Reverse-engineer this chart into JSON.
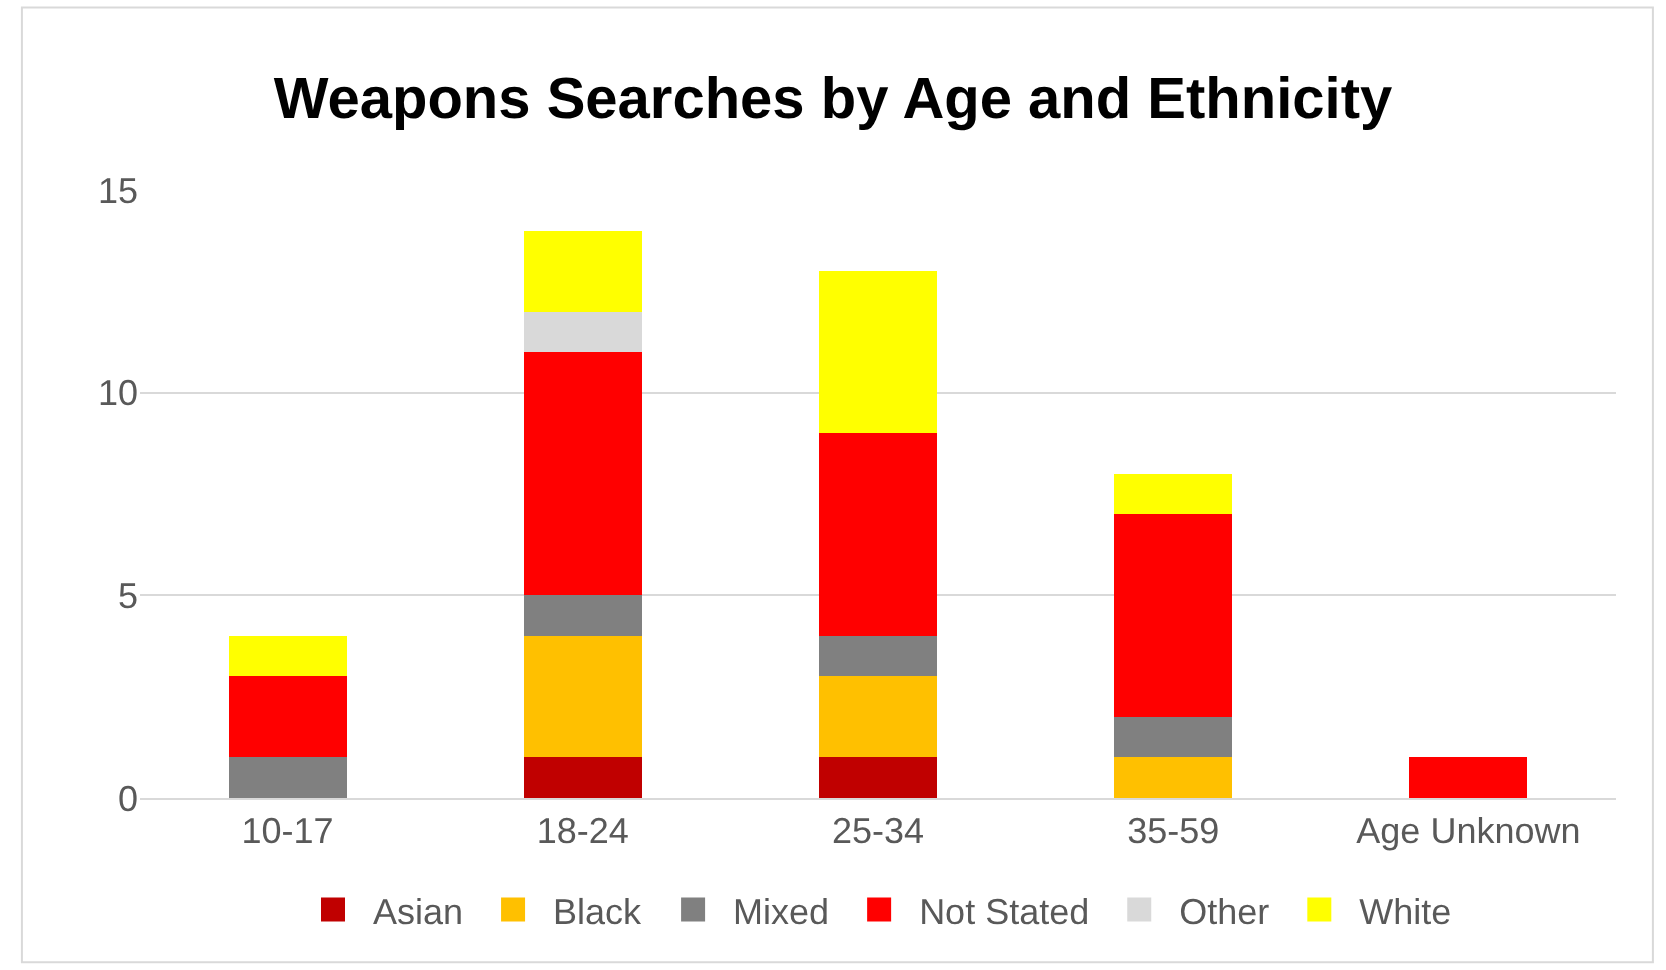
{
  "chart_data": {
    "type": "bar",
    "title": "Weapons Searches by Age and Ethnicity",
    "categories": [
      "10-17",
      "18-24",
      "25-34",
      "35-59",
      "Age Unknown"
    ],
    "stacked": true,
    "series": [
      {
        "name": "Asian",
        "color": "#c00000",
        "values": [
          0,
          1,
          1,
          0,
          0
        ]
      },
      {
        "name": "Black",
        "color": "#ffc000",
        "values": [
          0,
          3,
          2,
          1,
          0
        ]
      },
      {
        "name": "Mixed",
        "color": "#808080",
        "values": [
          1,
          1,
          1,
          1,
          0
        ]
      },
      {
        "name": "Not Stated",
        "color": "#ff0000",
        "values": [
          2,
          6,
          5,
          5,
          1
        ]
      },
      {
        "name": "Other",
        "color": "#d9d9d9",
        "values": [
          0,
          1,
          0,
          0,
          0
        ]
      },
      {
        "name": "White",
        "color": "#ffff00",
        "values": [
          1,
          2,
          4,
          1,
          0
        ]
      }
    ],
    "ylim": [
      0,
      15
    ],
    "yticks": [
      0,
      5,
      10,
      15
    ],
    "grid": "y",
    "legend": "bottom"
  }
}
